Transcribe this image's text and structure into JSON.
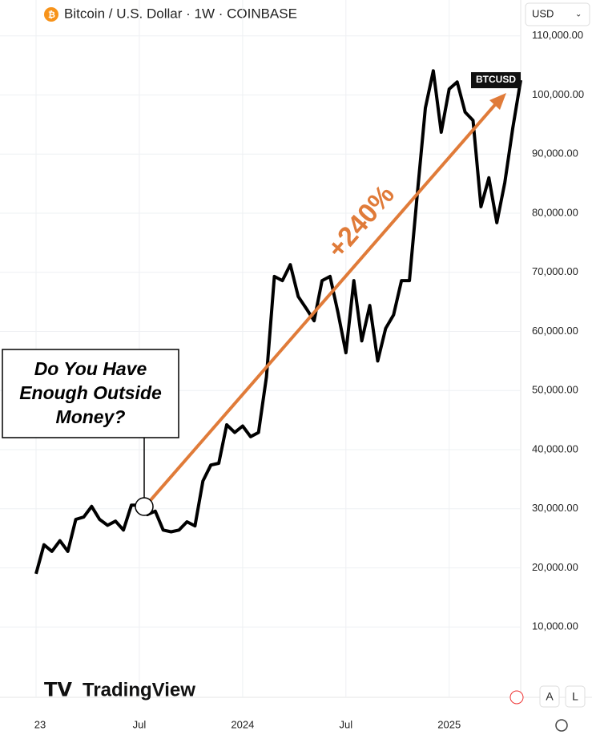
{
  "chart_data": {
    "type": "line",
    "title": "Bitcoin / U.S. Dollar · 1W · COINBASE",
    "currency": "USD",
    "symbol_tag": "BTCUSD",
    "gain_label": "+240%",
    "callout": [
      "Do You Have",
      "Enough Outside",
      "Money?"
    ],
    "brand": "TradingView",
    "buttons": [
      "A",
      "L"
    ],
    "categories": [
      "23",
      null,
      null,
      null,
      null,
      null,
      null,
      null,
      null,
      null,
      null,
      null,
      null,
      "Jul",
      null,
      null,
      null,
      null,
      null,
      null,
      null,
      null,
      null,
      null,
      null,
      null,
      "2024",
      null,
      null,
      null,
      null,
      null,
      null,
      null,
      null,
      null,
      null,
      null,
      null,
      "Jul",
      null,
      null,
      null,
      null,
      null,
      null,
      null,
      null,
      null,
      null,
      null,
      null,
      "2025",
      null,
      null,
      null,
      null,
      null,
      null,
      null,
      null,
      null
    ],
    "series": [
      {
        "name": "BTCUSD",
        "color": "#000000",
        "values": [
          19000,
          23900,
          22800,
          24600,
          22800,
          28200,
          28600,
          30400,
          28200,
          27200,
          27900,
          26400,
          30600,
          30600,
          29000,
          29600,
          26400,
          26100,
          26400,
          27800,
          27100,
          34700,
          37400,
          37700,
          44200,
          42900,
          44000,
          42200,
          42900,
          52300,
          69300,
          68600,
          71300,
          65900,
          63900,
          61800,
          68600,
          69300,
          63200,
          56400,
          68600,
          58400,
          64400,
          55000,
          60500,
          62800,
          68600,
          68600,
          83500,
          97800,
          104100,
          93700,
          101000,
          102200,
          97100,
          95700,
          81100,
          86000,
          78400,
          85200,
          94400,
          102500
        ]
      }
    ],
    "ylim": [
      0,
      112000
    ],
    "yticks": [
      {
        "value": 10000,
        "label": "10,000.00"
      },
      {
        "value": 20000,
        "label": "20,000.00"
      },
      {
        "value": 30000,
        "label": "30,000.00"
      },
      {
        "value": 40000,
        "label": "40,000.00"
      },
      {
        "value": 50000,
        "label": "50,000.00"
      },
      {
        "value": 60000,
        "label": "60,000.00"
      },
      {
        "value": 70000,
        "label": "70,000.00"
      },
      {
        "value": 80000,
        "label": "80,000.00"
      },
      {
        "value": 90000,
        "label": "90,000.00"
      },
      {
        "value": 100000,
        "label": "100,000.00"
      },
      {
        "value": 110000,
        "label": "110,000.00"
      }
    ],
    "grid": true,
    "arrow_color": "#e07b39"
  }
}
